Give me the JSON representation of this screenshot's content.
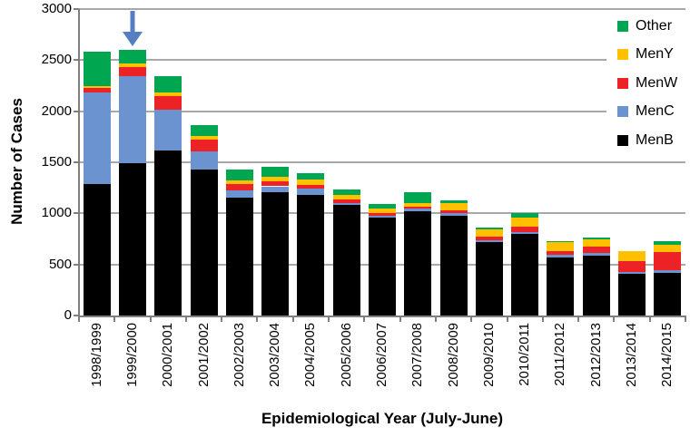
{
  "chart_data": {
    "type": "bar",
    "stacked": true,
    "title": "",
    "xlabel": "Epidemiological Year (July-June)",
    "ylabel": "Number of Cases",
    "ylim": [
      0,
      3000
    ],
    "ytick_step": 500,
    "grid": true,
    "legend_position": "top-right-inside",
    "categories": [
      "1998/1999",
      "1999/2000",
      "2000/2001",
      "2001/2002",
      "2002/2003",
      "2003/2004",
      "2004/2005",
      "2005/2006",
      "2006/2007",
      "2007/2008",
      "2008/2009",
      "2009/2010",
      "2010/2011",
      "2011/2012",
      "2012/2013",
      "2013/2014",
      "2014/2015"
    ],
    "series": [
      {
        "name": "MenB",
        "color": "#000000",
        "values": [
          1290,
          1495,
          1615,
          1430,
          1150,
          1205,
          1180,
          1080,
          955,
          1020,
          980,
          715,
          795,
          565,
          590,
          410,
          420
        ]
      },
      {
        "name": "MenC",
        "color": "#6B93CF",
        "values": [
          890,
          845,
          400,
          180,
          75,
          60,
          60,
          25,
          25,
          25,
          20,
          20,
          25,
          30,
          25,
          20,
          25
        ]
      },
      {
        "name": "MenW",
        "color": "#EC2227",
        "values": [
          45,
          90,
          135,
          110,
          60,
          50,
          40,
          35,
          25,
          20,
          30,
          35,
          50,
          35,
          60,
          105,
          180
        ]
      },
      {
        "name": "MenY",
        "color": "#FFC000",
        "values": [
          25,
          40,
          30,
          40,
          40,
          45,
          50,
          45,
          45,
          40,
          70,
          75,
          90,
          85,
          70,
          95,
          70
        ]
      },
      {
        "name": "Other",
        "color": "#00A650",
        "values": [
          330,
          135,
          160,
          105,
          100,
          95,
          65,
          45,
          45,
          100,
          30,
          15,
          40,
          15,
          20,
          0,
          30
        ]
      }
    ],
    "legend_order": [
      "Other",
      "MenY",
      "MenW",
      "MenC",
      "MenB"
    ],
    "annotation": {
      "shape": "down-arrow",
      "target_category": "1999/2000",
      "color": "#567EC3"
    }
  },
  "style_colors": {
    "gridline": "#A8A8A8",
    "axis": "#7F7F7F",
    "background": "#FFFFFF"
  }
}
